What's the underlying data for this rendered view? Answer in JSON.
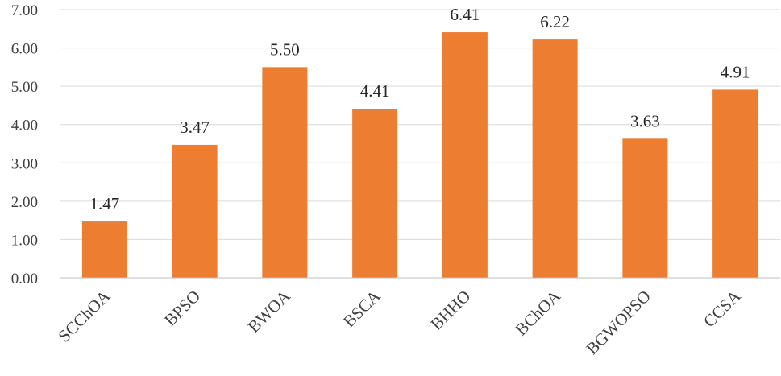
{
  "chart_data": {
    "type": "bar",
    "categories": [
      "SCChOA",
      "BPSO",
      "BWOA",
      "BSCA",
      "BHHO",
      "BChOA",
      "BGWOPSO",
      "CCSA"
    ],
    "values": [
      1.47,
      3.47,
      5.5,
      4.41,
      6.41,
      6.22,
      3.63,
      4.91
    ],
    "data_labels": [
      "1.47",
      "3.47",
      "5.50",
      "4.41",
      "6.41",
      "6.22",
      "3.63",
      "4.91"
    ],
    "ylim": [
      0,
      7
    ],
    "yticks": [
      "0.00",
      "1.00",
      "2.00",
      "3.00",
      "4.00",
      "5.00",
      "6.00",
      "7.00"
    ],
    "grid": true,
    "legend": "none",
    "bar_color": "#ED7D31"
  }
}
